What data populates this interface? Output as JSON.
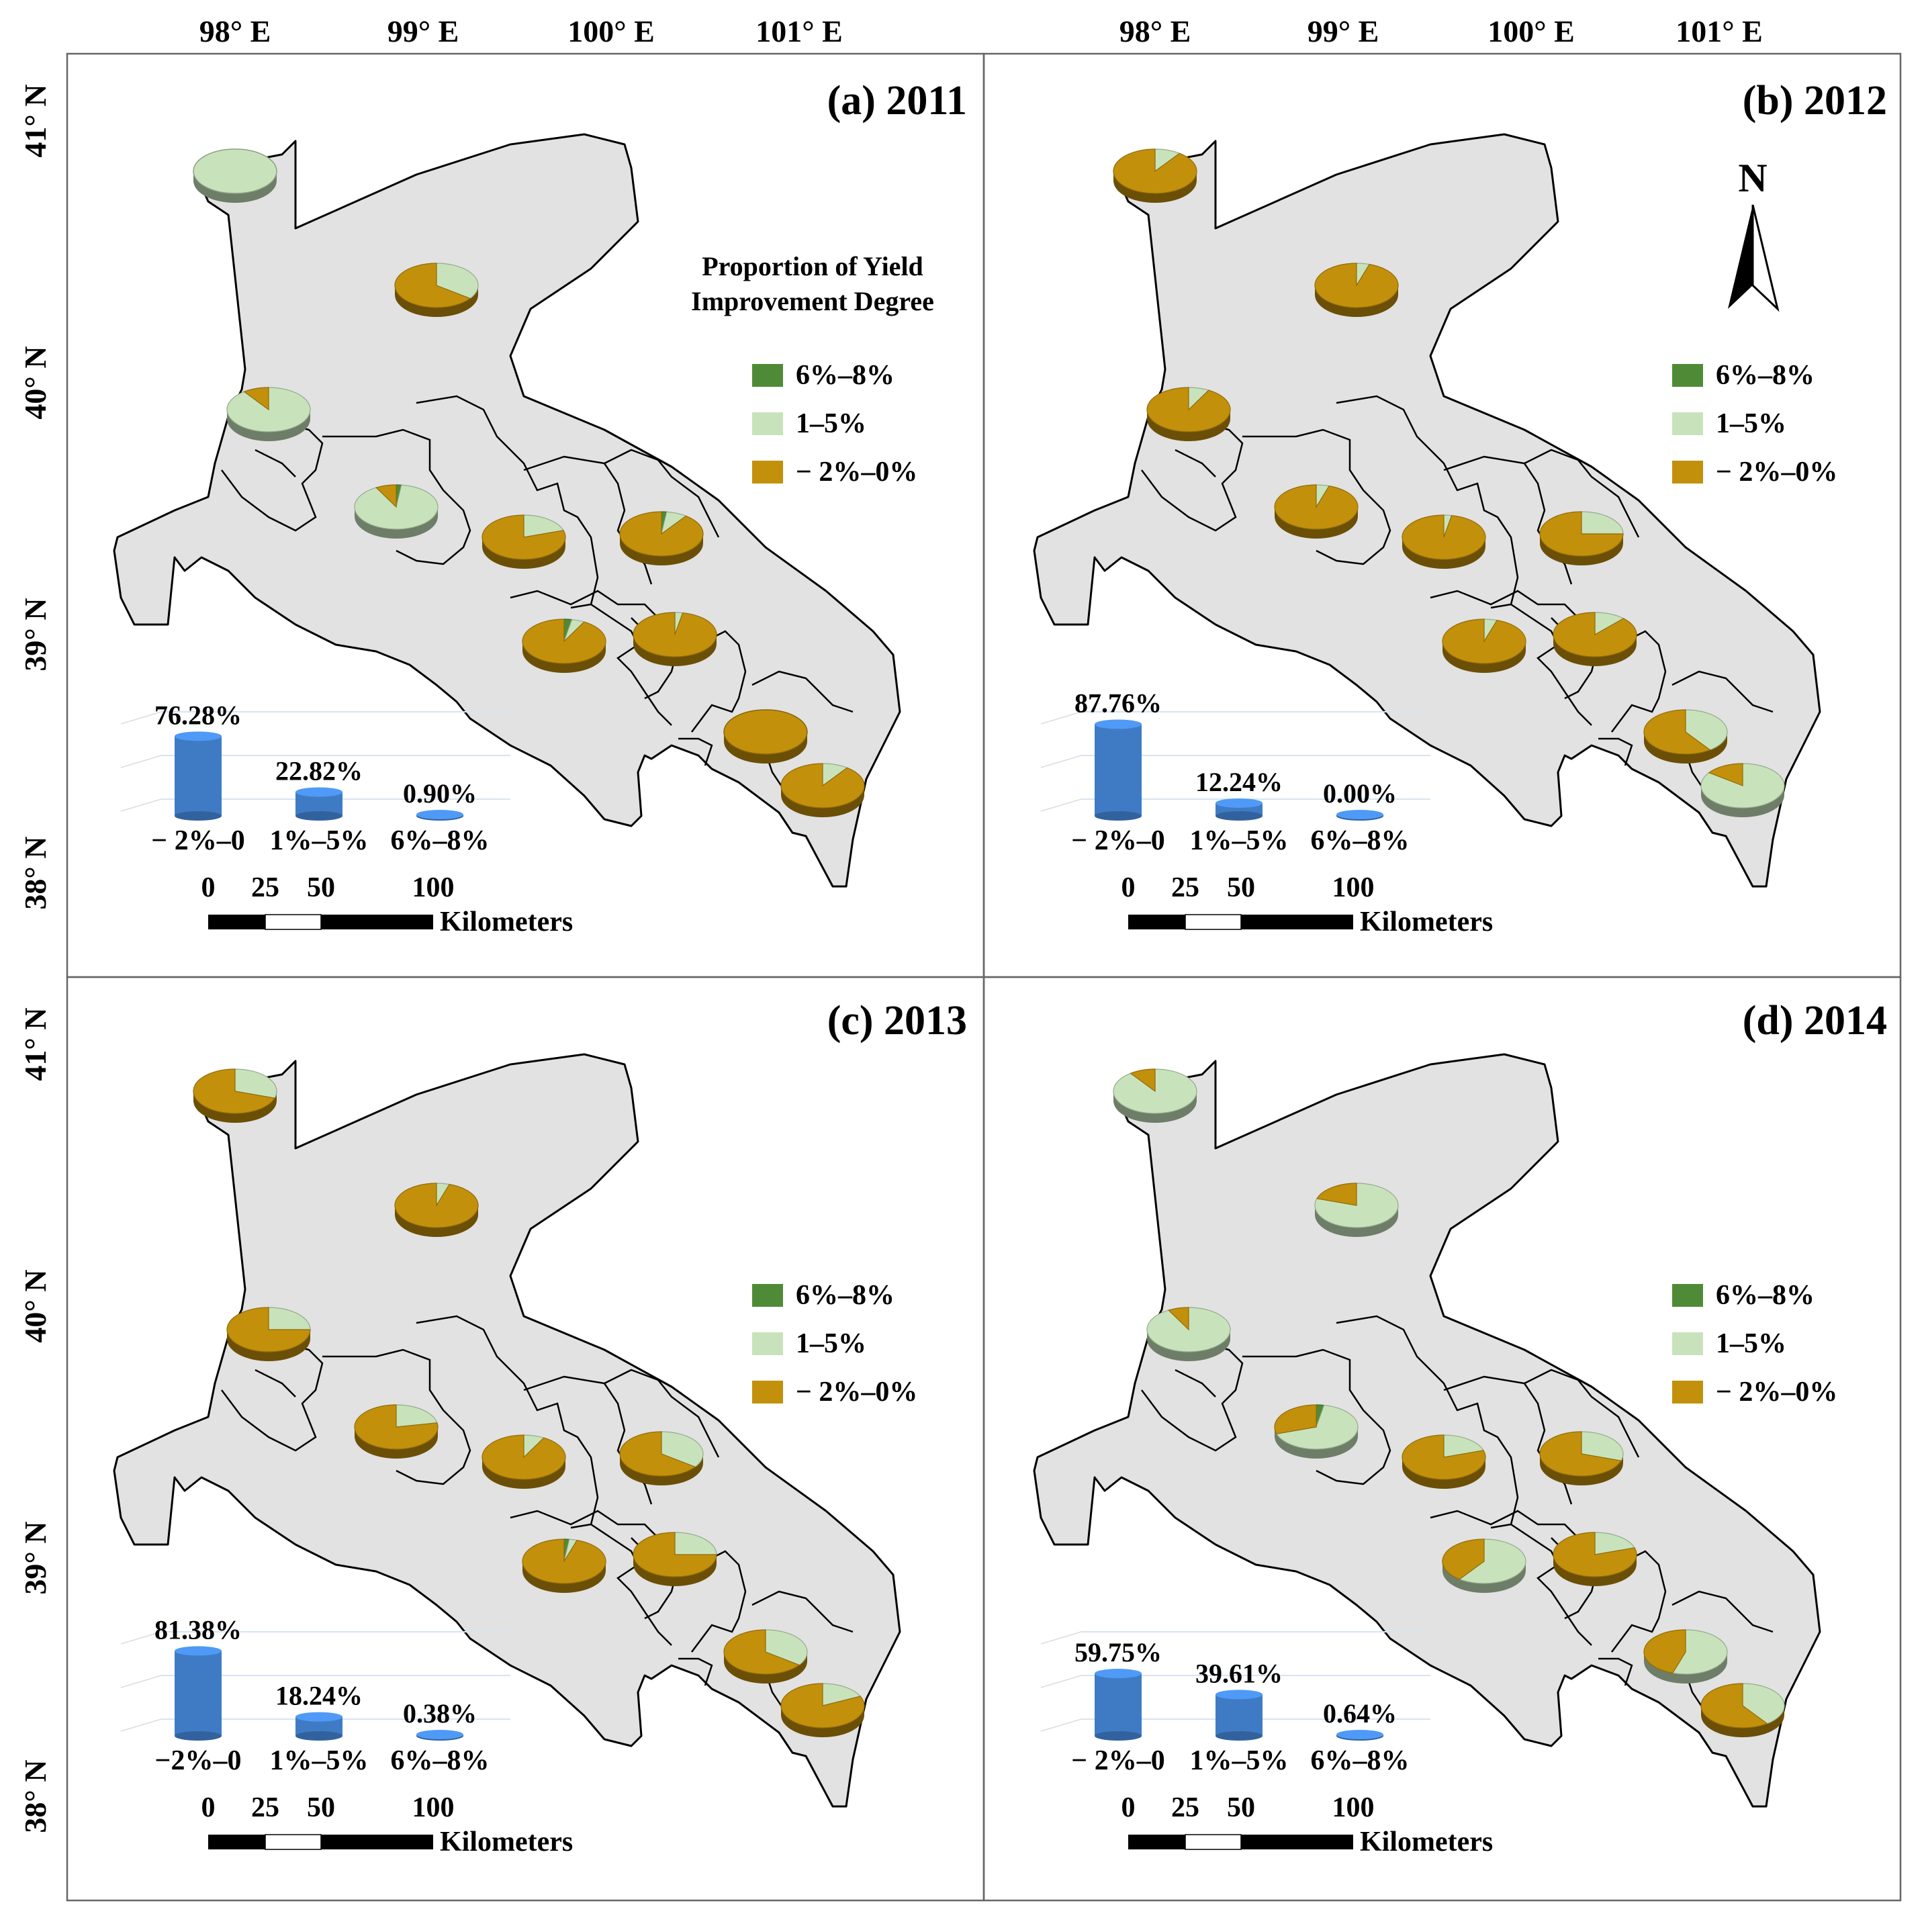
{
  "colors": {
    "high": "#4f8b36",
    "mid": "#c8e3bc",
    "low": "#c2900b",
    "bar": "#3f7bc5",
    "region": "#e2e2e2"
  },
  "axes": {
    "lon_labels": [
      "98° E",
      "99° E",
      "100° E",
      "101° E"
    ],
    "lat_labels": [
      "41° N",
      "40° N",
      "39° N",
      "38° N"
    ]
  },
  "legend": {
    "title_line1": "Proportion of Yield",
    "title_line2": "Improvement Degree",
    "items": [
      {
        "label": "6%–8%",
        "color_key": "high"
      },
      {
        "label": "1–5%",
        "color_key": "mid"
      },
      {
        "label": "− 2%–0%",
        "color_key": "low"
      }
    ]
  },
  "north_arrow": {
    "label": "N"
  },
  "scale_bar": {
    "ticks": [
      "0",
      "25",
      "50",
      "100"
    ],
    "unit": "Kilometers"
  },
  "panels": [
    {
      "title": "(a) 2011",
      "bars": [
        {
          "category": "− 2%–0",
          "label": "76.28%",
          "value": 76.28
        },
        {
          "category": "1%–5%",
          "label": "22.82%",
          "value": 22.82
        },
        {
          "category": "6%–8%",
          "label": "0.90%",
          "value": 0.9
        }
      ],
      "pies": [
        [
          0,
          100,
          0
        ],
        [
          0,
          35,
          65
        ],
        [
          0,
          90,
          10
        ],
        [
          2,
          90,
          8
        ],
        [
          0,
          20,
          80
        ],
        [
          2,
          8,
          90
        ],
        [
          3,
          5,
          92
        ],
        [
          0,
          3,
          97
        ],
        [
          0,
          0,
          100
        ],
        [
          0,
          10,
          90
        ]
      ]
    },
    {
      "title": "(b) 2012",
      "bars": [
        {
          "category": "− 2%–0",
          "label": "87.76%",
          "value": 87.76
        },
        {
          "category": "1%–5%",
          "label": "12.24%",
          "value": 12.24
        },
        {
          "category": "6%–8%",
          "label": "0.00%",
          "value": 0.0
        }
      ],
      "pies": [
        [
          0,
          10,
          90
        ],
        [
          0,
          5,
          95
        ],
        [
          0,
          8,
          92
        ],
        [
          0,
          5,
          95
        ],
        [
          0,
          3,
          97
        ],
        [
          0,
          25,
          75
        ],
        [
          0,
          5,
          95
        ],
        [
          0,
          12,
          88
        ],
        [
          0,
          40,
          60
        ],
        [
          0,
          85,
          15
        ]
      ]
    },
    {
      "title": "(c) 2013",
      "bars": [
        {
          "category": "−2%–0",
          "label": "81.38%",
          "value": 81.38
        },
        {
          "category": "1%–5%",
          "label": "18.24%",
          "value": 18.24
        },
        {
          "category": "6%–8%",
          "label": "0.38%",
          "value": 0.38
        }
      ],
      "pies": [
        [
          0,
          30,
          70
        ],
        [
          0,
          5,
          95
        ],
        [
          0,
          25,
          75
        ],
        [
          0,
          22,
          78
        ],
        [
          0,
          8,
          92
        ],
        [
          0,
          35,
          65
        ],
        [
          2,
          3,
          95
        ],
        [
          0,
          25,
          75
        ],
        [
          0,
          35,
          65
        ],
        [
          0,
          18,
          82
        ]
      ]
    },
    {
      "title": "(d) 2014",
      "bars": [
        {
          "category": "− 2%–0",
          "label": "59.75%",
          "value": 59.75
        },
        {
          "category": "1%–5%",
          "label": "39.61%",
          "value": 39.61
        },
        {
          "category": "6%–8%",
          "label": "0.64%",
          "value": 0.64
        }
      ],
      "pies": [
        [
          0,
          90,
          10
        ],
        [
          0,
          80,
          20
        ],
        [
          0,
          92,
          8
        ],
        [
          3,
          67,
          30
        ],
        [
          0,
          20,
          80
        ],
        [
          0,
          30,
          70
        ],
        [
          0,
          60,
          40
        ],
        [
          0,
          20,
          80
        ],
        [
          0,
          55,
          45
        ],
        [
          0,
          40,
          60
        ]
      ]
    }
  ]
}
